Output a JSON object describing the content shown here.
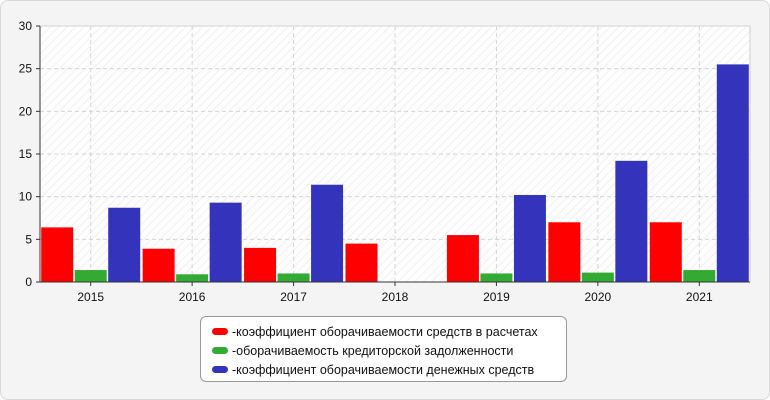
{
  "chart_data": {
    "type": "bar",
    "categories": [
      "2015",
      "2016",
      "2017",
      "2018",
      "2019",
      "2020",
      "2021"
    ],
    "series": [
      {
        "name": "коэффициент оборачиваемости средств в расчетах",
        "color": "#ff0000",
        "values": [
          6.4,
          3.9,
          4.0,
          4.5,
          5.5,
          7.0,
          7.0
        ]
      },
      {
        "name": "оборачиваемость кредиторской задолженности",
        "color": "#33aa33",
        "values": [
          1.4,
          0.9,
          1.0,
          0,
          1.0,
          1.1,
          1.4
        ]
      },
      {
        "name": "коэффициент оборачиваемости денежных средств",
        "color": "#3333bb",
        "values": [
          8.7,
          9.3,
          11.4,
          0,
          10.2,
          14.2,
          25.5
        ]
      }
    ],
    "ylim": [
      0,
      30
    ],
    "yticks": [
      0,
      5,
      10,
      15,
      20,
      25,
      30
    ],
    "grid": true,
    "legend_position": "bottom"
  },
  "legend_prefix": "- "
}
